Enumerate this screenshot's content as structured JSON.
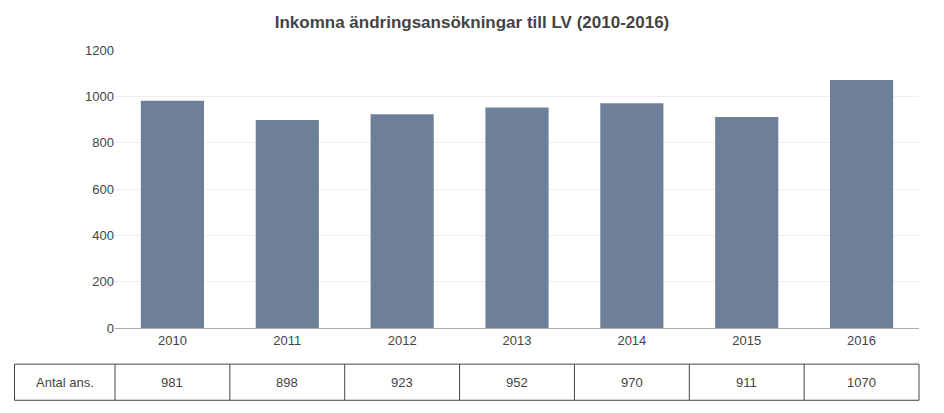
{
  "chart_data": {
    "type": "bar",
    "title": "Inkomna ändringsansökningar till LV (2010-2016)",
    "categories": [
      "2010",
      "2011",
      "2012",
      "2013",
      "2014",
      "2015",
      "2016"
    ],
    "values": [
      981,
      898,
      923,
      952,
      970,
      911,
      1070
    ],
    "color": "#6e8099",
    "ylim": [
      0,
      1200
    ],
    "yticks": [
      0,
      200,
      400,
      600,
      800,
      1000,
      1200
    ],
    "grid": true,
    "data_labels": true,
    "annotations": [
      {
        "text": "Antal ans."
      }
    ]
  }
}
